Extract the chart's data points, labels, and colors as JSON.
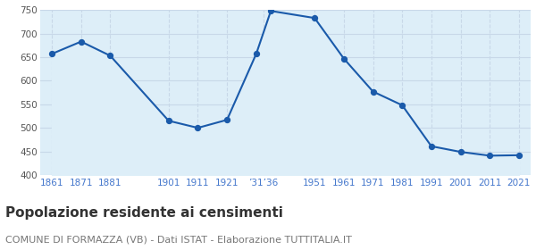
{
  "years": [
    1861,
    1871,
    1881,
    1901,
    1911,
    1921,
    1931,
    1936,
    1951,
    1961,
    1971,
    1981,
    1991,
    2001,
    2011,
    2021
  ],
  "population": [
    657,
    683,
    653,
    515,
    500,
    517,
    657,
    748,
    733,
    647,
    577,
    548,
    461,
    449,
    441,
    442
  ],
  "line_color": "#1a5aaa",
  "fill_color": "#ddeef8",
  "background_color": "#ffffff",
  "grid_color": "#c8d8e8",
  "ylim": [
    400,
    750
  ],
  "yticks": [
    400,
    450,
    500,
    550,
    600,
    650,
    700,
    750
  ],
  "xtick_positions": [
    1861,
    1871,
    1881,
    1901,
    1911,
    1921,
    1933.5,
    1951,
    1961,
    1971,
    1981,
    1991,
    2001,
    2011,
    2021
  ],
  "xtick_labels": [
    "1861",
    "1871",
    "1881",
    "1901",
    "1911",
    "1921",
    "’31’36",
    "1951",
    "1961",
    "1971",
    "1981",
    "1991",
    "2001",
    "2011",
    "2021"
  ],
  "title": "Popolazione residente ai censimenti",
  "subtitle": "COMUNE DI FORMAZZA (VB) - Dati ISTAT - Elaborazione TUTTITALIA.IT",
  "title_fontsize": 11,
  "subtitle_fontsize": 8,
  "tick_color": "#4477cc",
  "tick_fontsize": 7.5,
  "ytick_color": "#555555",
  "marker_size": 18
}
